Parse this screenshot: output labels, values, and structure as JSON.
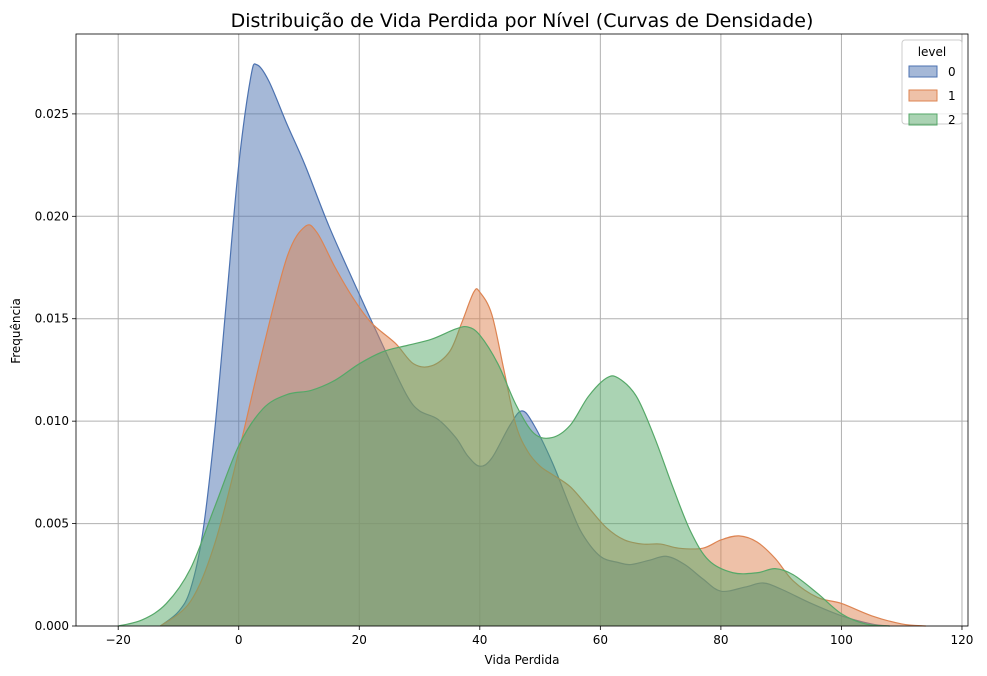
{
  "chart_data": {
    "type": "area",
    "title": "Distribuição de Vida Perdida por Nível (Curvas de Densidade)",
    "xlabel": "Vida Perdida",
    "ylabel": "Frequência",
    "xlim": [
      -27,
      121
    ],
    "ylim": [
      0,
      0.0289
    ],
    "xticks": [
      -20,
      0,
      20,
      40,
      60,
      80,
      100,
      120
    ],
    "yticks": [
      0.0,
      0.005,
      0.01,
      0.015,
      0.02,
      0.025
    ],
    "xtick_labels": [
      "−20",
      "0",
      "20",
      "40",
      "60",
      "80",
      "100",
      "120"
    ],
    "ytick_labels": [
      "0.000",
      "0.005",
      "0.010",
      "0.015",
      "0.020",
      "0.025"
    ],
    "grid": true,
    "legend": {
      "title": "level",
      "position": "top-right"
    },
    "series": [
      {
        "name": "0",
        "color": "#4c72b0",
        "points": [
          [
            -13,
            0
          ],
          [
            -10,
            0.0007
          ],
          [
            -8,
            0.0018
          ],
          [
            -6,
            0.0045
          ],
          [
            -4,
            0.0095
          ],
          [
            -2,
            0.016
          ],
          [
            0,
            0.0225
          ],
          [
            2,
            0.0268
          ],
          [
            3,
            0.0274
          ],
          [
            5,
            0.0266
          ],
          [
            8,
            0.0245
          ],
          [
            11,
            0.0225
          ],
          [
            15,
            0.0195
          ],
          [
            20,
            0.0162
          ],
          [
            25,
            0.013
          ],
          [
            28,
            0.0112
          ],
          [
            30,
            0.0105
          ],
          [
            33,
            0.0101
          ],
          [
            36,
            0.0092
          ],
          [
            38,
            0.0083
          ],
          [
            40,
            0.0078
          ],
          [
            42,
            0.0082
          ],
          [
            45,
            0.0098
          ],
          [
            47,
            0.0105
          ],
          [
            49,
            0.0098
          ],
          [
            52,
            0.008
          ],
          [
            55,
            0.0058
          ],
          [
            57,
            0.0045
          ],
          [
            60,
            0.0034
          ],
          [
            63,
            0.0031
          ],
          [
            65,
            0.003
          ],
          [
            68,
            0.0032
          ],
          [
            71,
            0.0034
          ],
          [
            74,
            0.003
          ],
          [
            77,
            0.0023
          ],
          [
            80,
            0.0017
          ],
          [
            84,
            0.0019
          ],
          [
            87,
            0.0021
          ],
          [
            90,
            0.0018
          ],
          [
            95,
            0.0011
          ],
          [
            100,
            0.0005
          ],
          [
            105,
            0.0001
          ],
          [
            108,
            0
          ]
        ]
      },
      {
        "name": "1",
        "color": "#dd8452",
        "points": [
          [
            -13,
            0
          ],
          [
            -8,
            0.0012
          ],
          [
            -4,
            0.004
          ],
          [
            0,
            0.0085
          ],
          [
            4,
            0.0135
          ],
          [
            8,
            0.018
          ],
          [
            11,
            0.0195
          ],
          [
            13,
            0.0192
          ],
          [
            16,
            0.0175
          ],
          [
            19,
            0.016
          ],
          [
            22,
            0.0148
          ],
          [
            26,
            0.0138
          ],
          [
            29,
            0.0128
          ],
          [
            32,
            0.0127
          ],
          [
            35,
            0.0134
          ],
          [
            37,
            0.0148
          ],
          [
            39,
            0.0163
          ],
          [
            40,
            0.0163
          ],
          [
            42,
            0.0152
          ],
          [
            44,
            0.0125
          ],
          [
            46,
            0.0098
          ],
          [
            48,
            0.0085
          ],
          [
            50,
            0.0078
          ],
          [
            52,
            0.0074
          ],
          [
            55,
            0.0068
          ],
          [
            58,
            0.0058
          ],
          [
            61,
            0.0048
          ],
          [
            64,
            0.0042
          ],
          [
            67,
            0.004
          ],
          [
            70,
            0.004
          ],
          [
            73,
            0.0038
          ],
          [
            77,
            0.0038
          ],
          [
            80,
            0.0042
          ],
          [
            83,
            0.0044
          ],
          [
            86,
            0.0041
          ],
          [
            89,
            0.0033
          ],
          [
            92,
            0.0022
          ],
          [
            96,
            0.0014
          ],
          [
            100,
            0.0011
          ],
          [
            105,
            0.0005
          ],
          [
            110,
            0.0001
          ],
          [
            114,
            0
          ]
        ]
      },
      {
        "name": "2",
        "color": "#55a868",
        "points": [
          [
            -20,
            0
          ],
          [
            -16,
            0.0003
          ],
          [
            -12,
            0.0011
          ],
          [
            -8,
            0.0028
          ],
          [
            -4,
            0.0058
          ],
          [
            0,
            0.0088
          ],
          [
            4,
            0.0106
          ],
          [
            8,
            0.0113
          ],
          [
            12,
            0.0115
          ],
          [
            16,
            0.012
          ],
          [
            20,
            0.0128
          ],
          [
            24,
            0.0134
          ],
          [
            28,
            0.0137
          ],
          [
            32,
            0.014
          ],
          [
            36,
            0.0145
          ],
          [
            38,
            0.0146
          ],
          [
            40,
            0.0142
          ],
          [
            43,
            0.0128
          ],
          [
            46,
            0.0108
          ],
          [
            49,
            0.0094
          ],
          [
            52,
            0.0092
          ],
          [
            55,
            0.0098
          ],
          [
            58,
            0.0112
          ],
          [
            61,
            0.0121
          ],
          [
            63,
            0.0121
          ],
          [
            66,
            0.0112
          ],
          [
            69,
            0.0092
          ],
          [
            72,
            0.0068
          ],
          [
            75,
            0.0046
          ],
          [
            78,
            0.0032
          ],
          [
            82,
            0.0026
          ],
          [
            86,
            0.0026
          ],
          [
            89,
            0.0028
          ],
          [
            92,
            0.0025
          ],
          [
            96,
            0.0016
          ],
          [
            100,
            0.0006
          ],
          [
            104,
            0.0001
          ],
          [
            108,
            0
          ]
        ]
      }
    ]
  }
}
